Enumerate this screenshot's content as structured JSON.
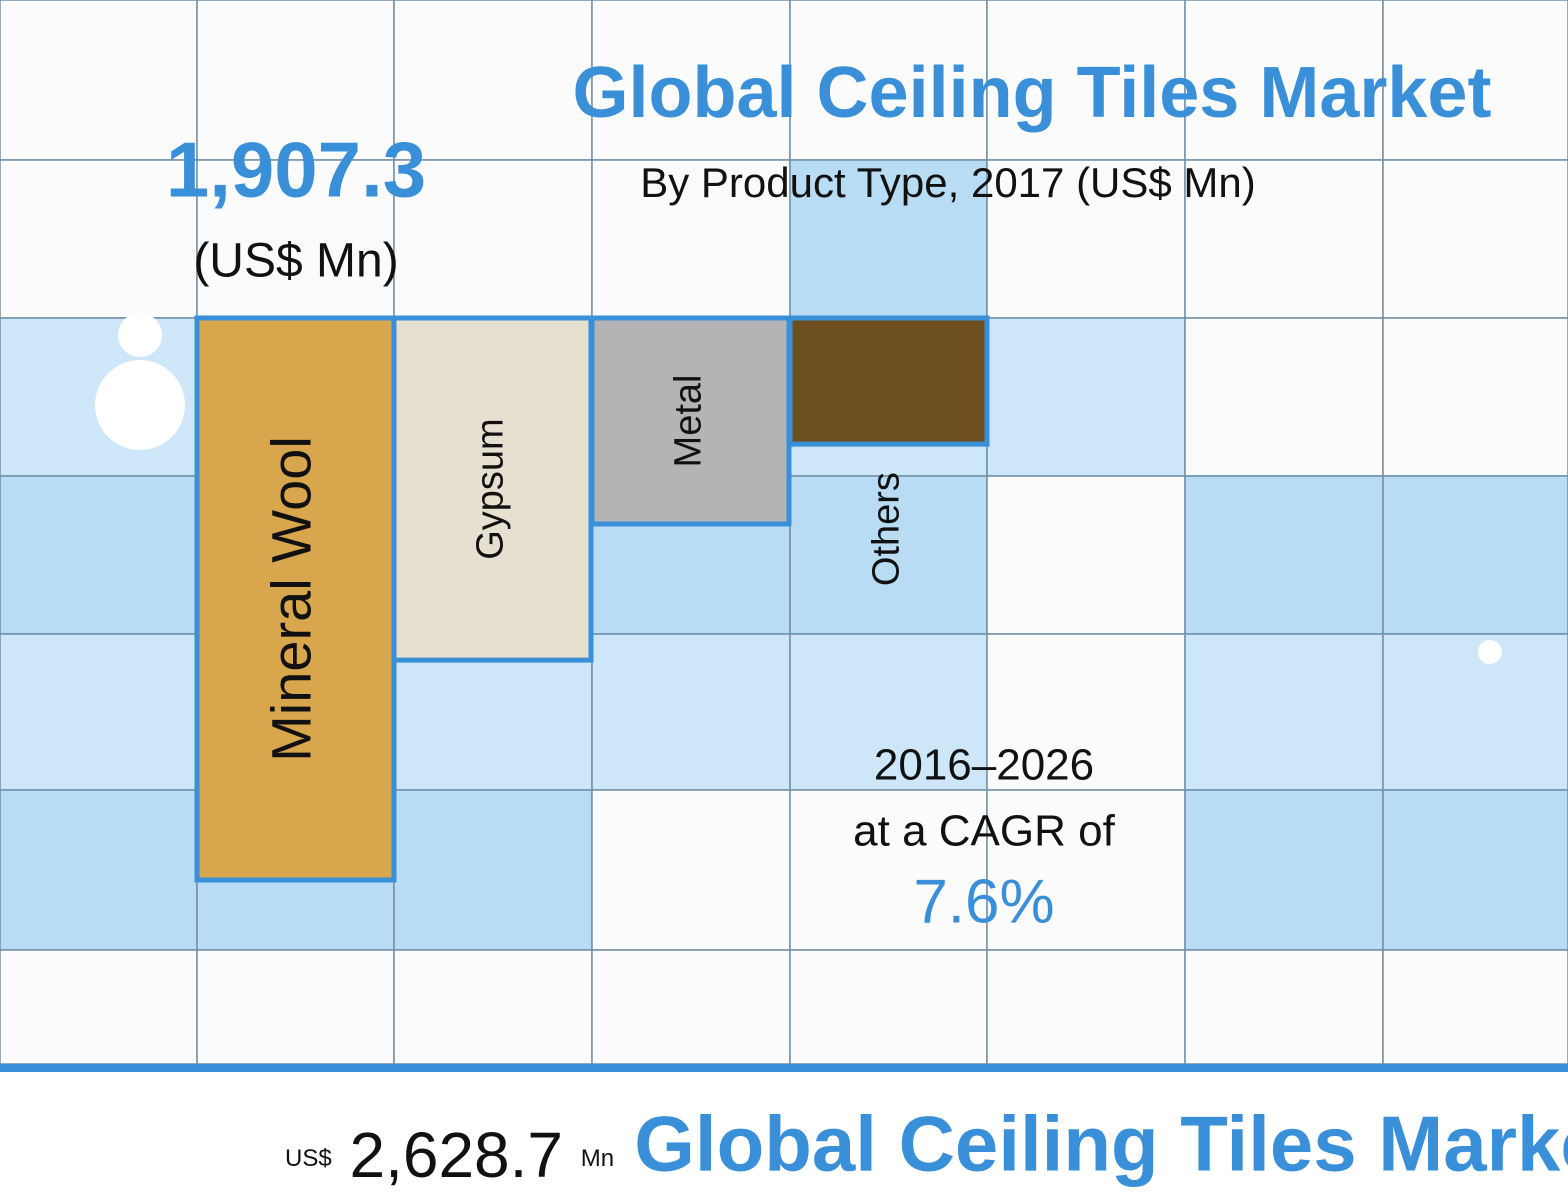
{
  "chart_data": {
    "type": "bar",
    "title": "Global Ceiling Tiles Market",
    "subtitle": "By Product Type, 2017 (US$ Mn)",
    "categories": [
      "Mineral Wool",
      "Gypsum",
      "Metal",
      "Others"
    ],
    "values": [
      1907.3,
      1161,
      699,
      428
    ],
    "value_labels": [
      "1,907.3",
      null,
      null,
      null
    ],
    "value_unit": "(US$ Mn)",
    "colors": [
      "#d8a64c",
      "#e6e0d0",
      "#b4b4b4",
      "#6e5020"
    ],
    "cagr_period": "2016–2026",
    "cagr_text": "at a CAGR of",
    "cagr": {
      "value": 7.6,
      "label": "7.6%"
    }
  },
  "footer": {
    "currency": "US$",
    "value": {
      "value": 2628.7,
      "label": "2,628.7"
    },
    "unit": "Mn",
    "title": "Global Ceiling Tiles Market"
  }
}
